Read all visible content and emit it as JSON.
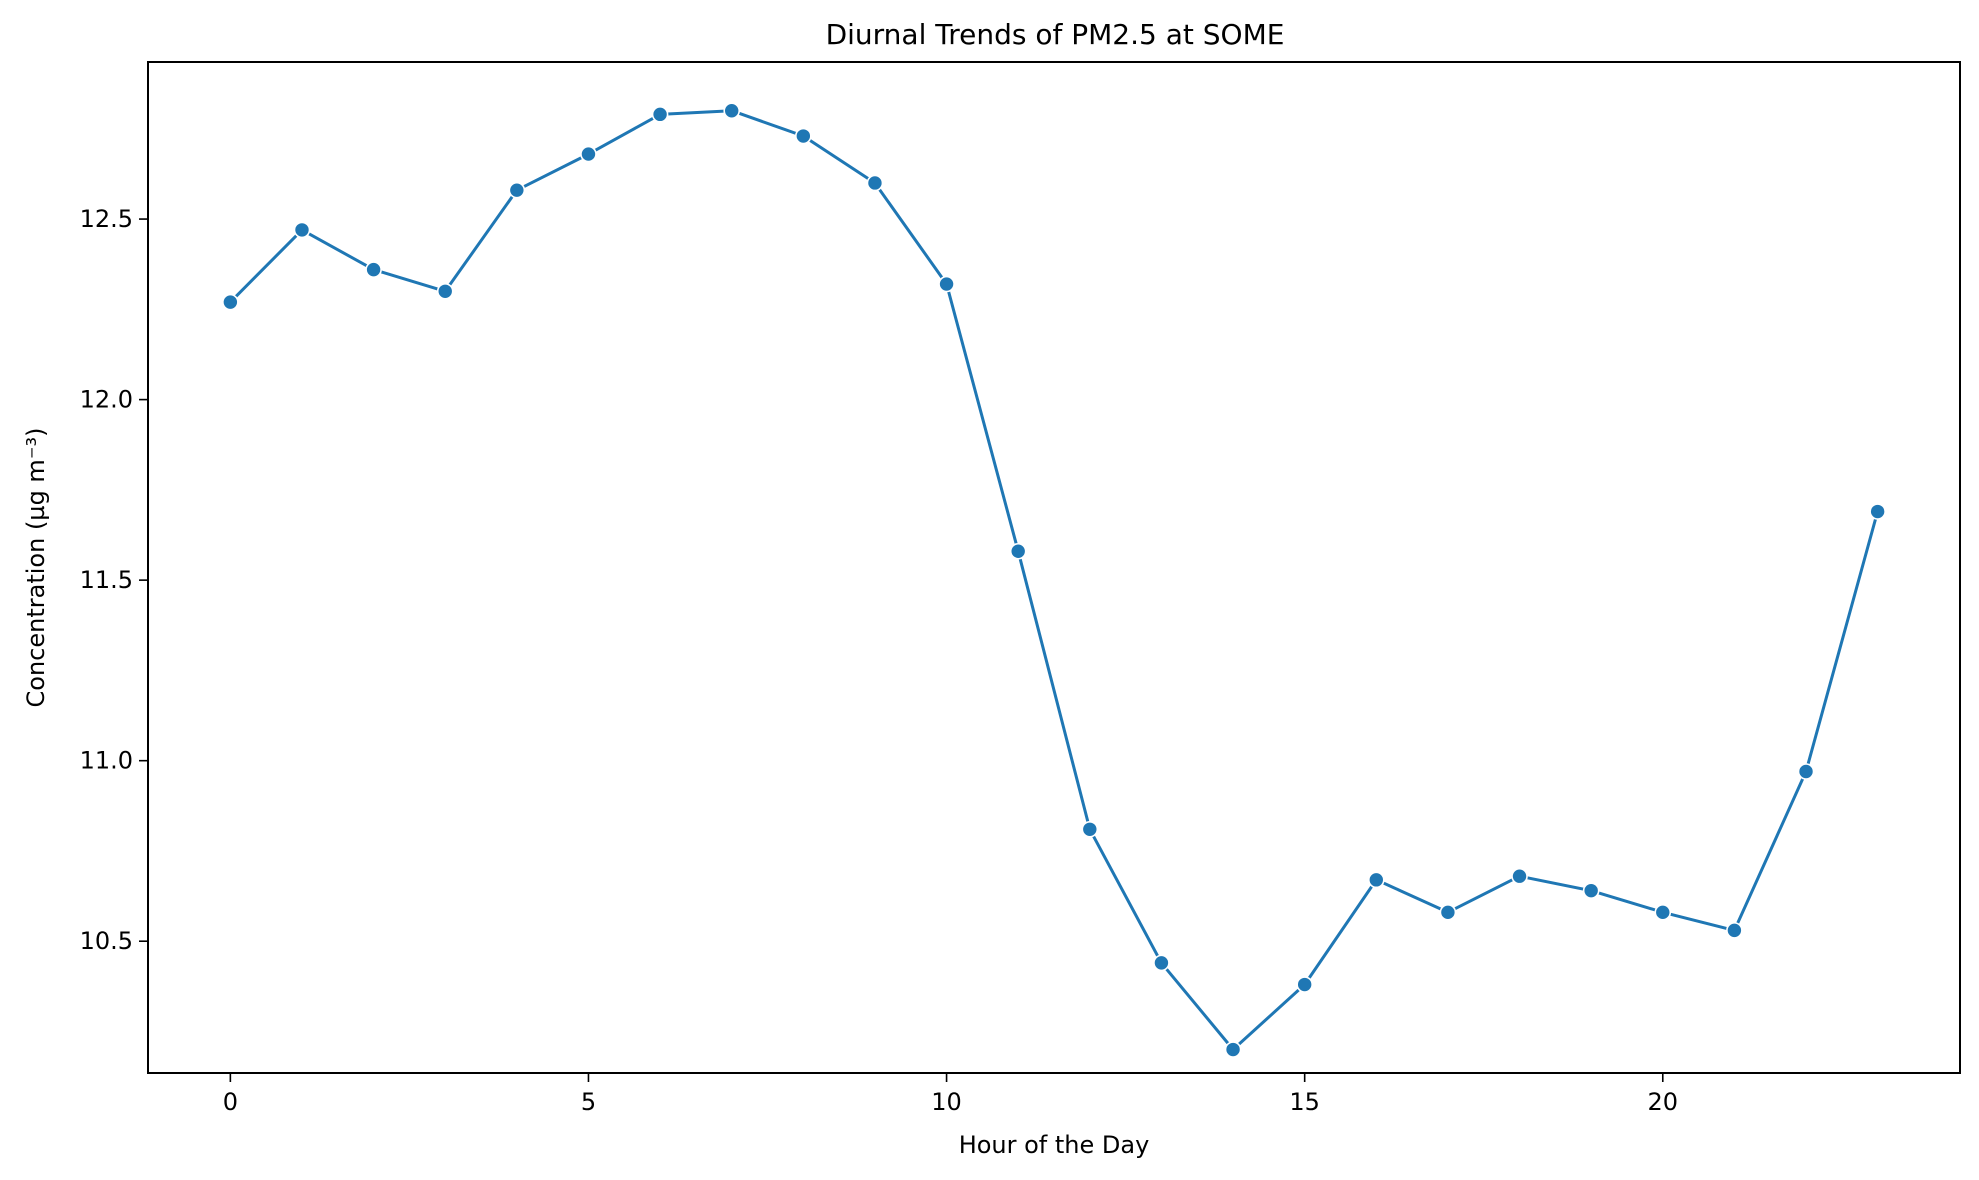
{
  "chart_data": {
    "type": "line",
    "title": "Diurnal Trends of PM2.5 at SOME",
    "xlabel": "Hour of the Day",
    "ylabel": "Concentration (µg m⁻³)",
    "xlim": [
      -1.15,
      24.15
    ],
    "ylim": [
      10.135,
      12.935
    ],
    "xticks": [
      0,
      5,
      10,
      15,
      20
    ],
    "xtick_labels": [
      "0",
      "5",
      "10",
      "15",
      "20"
    ],
    "yticks": [
      10.5,
      11.0,
      11.5,
      12.0,
      12.5
    ],
    "ytick_labels": [
      "10.5",
      "11.0",
      "11.5",
      "12.0",
      "12.5"
    ],
    "grid": false,
    "legend": "none",
    "series": [
      {
        "color": "#1f77b4",
        "marker": "circle",
        "x": [
          0,
          1,
          2,
          3,
          4,
          5,
          6,
          7,
          8,
          9,
          10,
          11,
          12,
          13,
          14,
          15,
          16,
          17,
          18,
          19,
          20,
          21,
          22,
          23
        ],
        "values": [
          12.27,
          12.47,
          12.36,
          12.3,
          12.58,
          12.68,
          12.79,
          12.8,
          12.73,
          12.6,
          12.32,
          11.58,
          10.81,
          10.44,
          10.2,
          10.38,
          10.67,
          10.58,
          10.68,
          10.64,
          10.58,
          10.53,
          10.97,
          11.69
        ]
      }
    ]
  }
}
